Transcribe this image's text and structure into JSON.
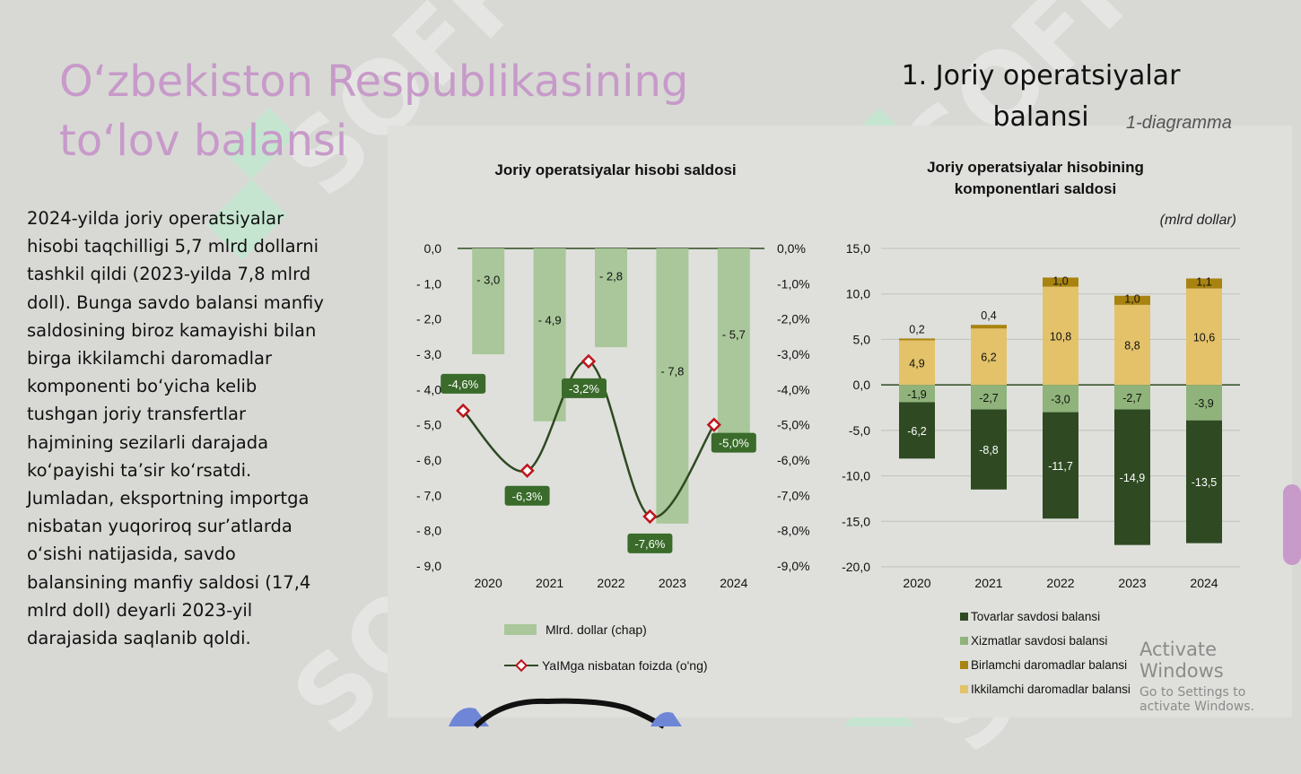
{
  "slide": {
    "title": "O‘zbekiston Respublikasining to‘lov balansi",
    "section_heading": "1. Joriy operatsiyalar balansi",
    "diagram_label": "1-diagramma",
    "body": "2024-yilda joriy operatsiyalar hisobi taqchilligi 5,7 mlrd dollarni tashkil qildi (2023-yilda 7,8 mlrd doll). Bunga savdo balansi manfiy saldosining biroz kamayishi bilan birga ikkilamchi daromadlar komponenti bo‘yicha kelib tushgan joriy transfertlar hajmining sezilarli darajada ko‘payishi ta’sir ko‘rsatdi. Jumladan, eksportning importga nisbatan yuqoriroq sur’atlarda o‘sishi natijasida, savdo balansining manfiy saldosi (17,4 mlrd doll) deyarli 2023-yil darajasida saqlanib qoldi.",
    "watermark": "SOFF",
    "activate_line1": "Activate Windows",
    "activate_line2": "Go to Settings to activate Windows."
  },
  "colors": {
    "title": "#c79ac9",
    "bar_light": "#a9c79a",
    "line": "#2f4a22",
    "marker": "#c0141c",
    "label_box": "#3a6b2a",
    "goods": "#2f4a22",
    "services": "#8fb37a",
    "primary": "#a8830f",
    "secondary": "#e3c26a"
  },
  "chart_data": [
    {
      "type": "bar",
      "title": "Joriy operatsiyalar hisobi saldosi",
      "categories": [
        "2020",
        "2021",
        "2022",
        "2023",
        "2024"
      ],
      "series": [
        {
          "name": "Mlrd. dollar  (chap)",
          "values": [
            -3.0,
            -4.9,
            -2.8,
            -7.8,
            -5.7
          ],
          "axis": "left",
          "labels": [
            "- 3,0",
            "- 4,9",
            "- 2,8",
            "- 7,8",
            "- 5,7"
          ]
        },
        {
          "name": "YaIMga nisbatan foizda (o'ng)",
          "type": "line",
          "values": [
            -4.6,
            -6.3,
            -3.2,
            -7.6,
            -5.0
          ],
          "axis": "right",
          "labels": [
            "-4,6%",
            "-6,3%",
            "-3,2%",
            "-7,6%",
            "-5,0%"
          ]
        }
      ],
      "ylim_left": [
        -9,
        0
      ],
      "ylim_right": [
        -9,
        0
      ],
      "yticks_left": [
        "0,0",
        "- 1,0",
        "- 2,0",
        "- 3,0",
        "- 4,0",
        "- 5,0",
        "- 6,0",
        "- 7,0",
        "- 8,0",
        "- 9,0"
      ],
      "yticks_right": [
        "0,0%",
        "-1,0%",
        "-2,0%",
        "-3,0%",
        "-4,0%",
        "-5,0%",
        "-6,0%",
        "-7,0%",
        "-8,0%",
        "-9,0%"
      ],
      "legend_position": "bottom"
    },
    {
      "type": "bar",
      "stacked": true,
      "title": "Joriy operatsiyalar hisobining komponentlari saldosi",
      "unit_label": "(mlrd dollar)",
      "categories": [
        "2020",
        "2021",
        "2022",
        "2023",
        "2024"
      ],
      "series": [
        {
          "name": "Tovarlar savdosi balansi",
          "values": [
            -6.2,
            -8.8,
            -11.7,
            -14.9,
            -13.5
          ],
          "labels": [
            "-6,2",
            "-8,8",
            "-11,7",
            "-14,9",
            "-13,5"
          ]
        },
        {
          "name": "Xizmatlar savdosi balansi",
          "values": [
            -1.9,
            -2.7,
            -3.0,
            -2.7,
            -3.9
          ],
          "labels": [
            "-1,9",
            "-2,7",
            "-3,0",
            "-2,7",
            "-3,9"
          ]
        },
        {
          "name": "Birlamchi daromadlar balansi",
          "values": [
            0.2,
            0.4,
            1.0,
            1.0,
            1.1
          ],
          "labels": [
            "0,2",
            "0,4",
            "1,0",
            "1,0",
            "1,1"
          ]
        },
        {
          "name": "Ikkilamchi daromadlar balansi",
          "values": [
            4.9,
            6.2,
            10.8,
            8.8,
            10.6
          ],
          "labels": [
            "4,9",
            "6,2",
            "10,8",
            "8,8",
            "10,6"
          ]
        }
      ],
      "ylim": [
        -20,
        15
      ],
      "yticks": [
        "15,0",
        "10,0",
        "5,0",
        "0,0",
        "-5,0",
        "-10,0",
        "-15,0",
        "-20,0"
      ],
      "legend_position": "bottom"
    }
  ]
}
